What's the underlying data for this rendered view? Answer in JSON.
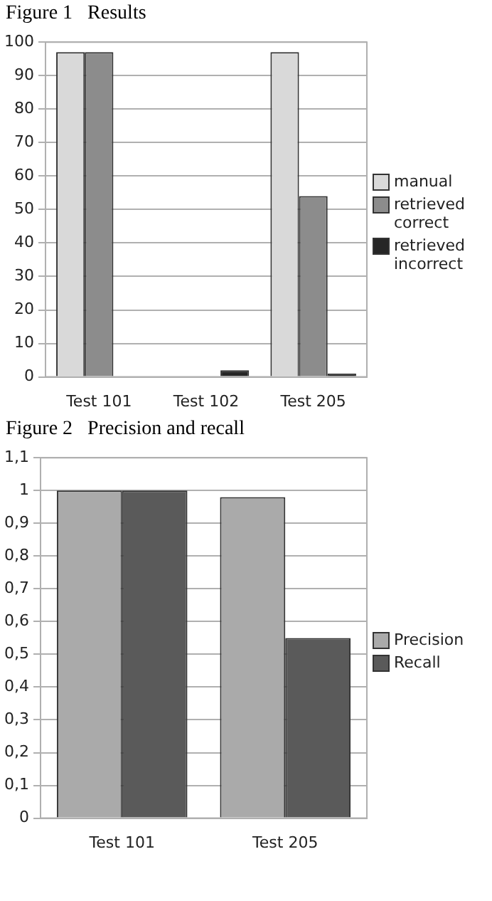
{
  "chart_data": [
    {
      "type": "bar",
      "title": "Figure 1   Results",
      "categories": [
        "Test 101",
        "Test 102",
        "Test 205"
      ],
      "series": [
        {
          "name": "manual",
          "color": "#d9d9d9",
          "values": [
            97,
            0,
            97
          ]
        },
        {
          "name": "retrieved correct",
          "color": "#8c8c8c",
          "values": [
            97,
            0,
            54
          ]
        },
        {
          "name": "retrieved incorrect",
          "color": "#262626",
          "values": [
            0,
            2,
            1
          ]
        }
      ],
      "ylim": [
        0,
        100
      ],
      "yticks": [
        0,
        10,
        20,
        30,
        40,
        50,
        60,
        70,
        80,
        90,
        100
      ],
      "grid": "y",
      "legend": "right"
    },
    {
      "type": "bar",
      "title": "Figure 2   Precision and recall",
      "categories": [
        "Test 101",
        "Test 205"
      ],
      "series": [
        {
          "name": "Precision",
          "color": "#aaaaaa",
          "values": [
            1,
            0.98
          ]
        },
        {
          "name": "Recall",
          "color": "#5a5a5a",
          "values": [
            1,
            0.55
          ]
        }
      ],
      "ylim": [
        0,
        1.1
      ],
      "yticks": [
        0,
        {
          "value": 0.1,
          "label": "0,1"
        },
        {
          "value": 0.2,
          "label": "0,2"
        },
        {
          "value": 0.3,
          "label": "0,3"
        },
        {
          "value": 0.4,
          "label": "0,4"
        },
        {
          "value": 0.5,
          "label": "0,5"
        },
        {
          "value": 0.6,
          "label": "0,6"
        },
        {
          "value": 0.7,
          "label": "0,7"
        },
        {
          "value": 0.8,
          "label": "0,8"
        },
        {
          "value": 0.9,
          "label": "0,9"
        },
        1,
        {
          "value": 1.1,
          "label": "1,1"
        }
      ],
      "grid": "y",
      "legend": "right"
    }
  ]
}
